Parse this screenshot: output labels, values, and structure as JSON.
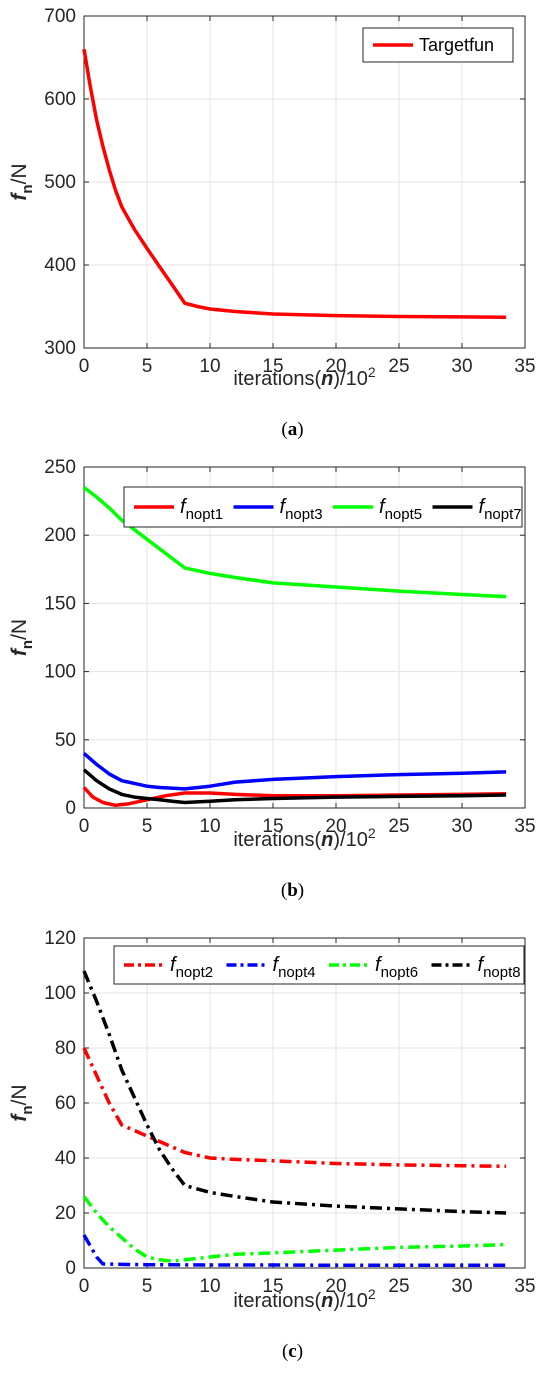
{
  "chart_data": [
    {
      "type": "line",
      "panel": "a",
      "caption": "(a)",
      "caption_letter": "a",
      "xlabel_prefix": "iterations(",
      "xlabel_var": "n",
      "xlabel_suffix": ")/10",
      "xlabel_exp": "2",
      "ylabel_var": "f",
      "ylabel_sub": "n",
      "ylabel_unit": "/N",
      "xlim": [
        0,
        35
      ],
      "ylim": [
        300,
        700
      ],
      "xticks": [
        "0",
        "5",
        "10",
        "15",
        "20",
        "25",
        "30",
        "35"
      ],
      "yticks": [
        "300",
        "400",
        "500",
        "600",
        "700"
      ],
      "grid": true,
      "legend": "top-right",
      "series": [
        {
          "name": "Targetfun",
          "color": "#ff0000",
          "dash": "solid",
          "x": [
            0,
            0.5,
            1,
            1.5,
            2,
            2.5,
            3,
            4,
            5,
            6,
            7,
            8,
            9,
            10,
            12,
            15,
            20,
            25,
            30,
            33.5
          ],
          "y": [
            660,
            615,
            575,
            543,
            515,
            490,
            470,
            443,
            420,
            398,
            376,
            354,
            350,
            347,
            344,
            341,
            339,
            338,
            337.5,
            337
          ]
        }
      ]
    },
    {
      "type": "line",
      "panel": "b",
      "caption": "(b)",
      "caption_letter": "b",
      "xlabel_prefix": "iterations(",
      "xlabel_var": "n",
      "xlabel_suffix": ")/10",
      "xlabel_exp": "2",
      "ylabel_var": "f",
      "ylabel_sub": "n",
      "ylabel_unit": "/N",
      "xlim": [
        0,
        35
      ],
      "ylim": [
        0,
        250
      ],
      "xticks": [
        "0",
        "5",
        "10",
        "15",
        "20",
        "25",
        "30",
        "35"
      ],
      "yticks": [
        "0",
        "50",
        "100",
        "150",
        "200",
        "250"
      ],
      "grid": true,
      "legend": "top",
      "series": [
        {
          "name_f": "f",
          "name_sub": "nopt1",
          "color": "#ff0000",
          "dash": "solid",
          "x": [
            0,
            0.7,
            1.5,
            2.5,
            3.5,
            5,
            6.5,
            8,
            10,
            12,
            15,
            20,
            25,
            30,
            33.5
          ],
          "y": [
            15,
            8,
            4,
            2,
            3,
            6,
            9,
            11,
            11,
            10,
            9,
            9,
            9.5,
            10,
            10.5
          ]
        },
        {
          "name_f": "f",
          "name_sub": "nopt3",
          "color": "#0000ff",
          "dash": "solid",
          "x": [
            0,
            1,
            2,
            3,
            4,
            5,
            6,
            8,
            10,
            12,
            15,
            20,
            25,
            30,
            33.5
          ],
          "y": [
            40,
            32,
            25,
            20,
            18,
            16,
            15,
            14,
            16,
            19,
            21,
            23,
            24.5,
            25.5,
            26.5
          ]
        },
        {
          "name_f": "f",
          "name_sub": "nopt5",
          "color": "#00ff00",
          "dash": "solid",
          "x": [
            0,
            1,
            2,
            3,
            4,
            5,
            6,
            7,
            8,
            10,
            12,
            15,
            20,
            25,
            30,
            33.5
          ],
          "y": [
            235,
            228,
            220,
            211,
            204,
            197,
            190,
            183,
            176,
            172,
            169,
            165,
            162,
            159,
            156.5,
            155
          ]
        },
        {
          "name_f": "f",
          "name_sub": "nopt7",
          "color": "#000000",
          "dash": "solid",
          "x": [
            0,
            1,
            2,
            3,
            4,
            5,
            6,
            7,
            8,
            10,
            12,
            15,
            20,
            25,
            30,
            33.5
          ],
          "y": [
            28,
            20,
            14,
            10,
            8,
            7,
            6,
            5,
            4,
            5,
            6,
            7,
            8,
            8.5,
            9,
            9.5
          ]
        }
      ]
    },
    {
      "type": "line",
      "panel": "c",
      "caption": "(c)",
      "caption_letter": "c",
      "xlabel_prefix": "iterations(",
      "xlabel_var": "n",
      "xlabel_suffix": ")/10",
      "xlabel_exp": "2",
      "ylabel_var": "f",
      "ylabel_sub": "n",
      "ylabel_unit": "/N",
      "xlim": [
        0,
        35
      ],
      "ylim": [
        0,
        120
      ],
      "xticks": [
        "0",
        "5",
        "10",
        "15",
        "20",
        "25",
        "30",
        "35"
      ],
      "yticks": [
        "0",
        "20",
        "40",
        "60",
        "80",
        "100",
        "120"
      ],
      "grid": true,
      "legend": "top",
      "series": [
        {
          "name_f": "f",
          "name_sub": "nopt2",
          "color": "#ff0000",
          "dash": "dashdot",
          "x": [
            0,
            1,
            2,
            3,
            4,
            5,
            6,
            7,
            8,
            10,
            12,
            15,
            20,
            25,
            30,
            33.5
          ],
          "y": [
            80,
            70,
            60,
            52,
            50,
            48,
            46,
            44,
            42,
            40,
            39.5,
            39,
            38,
            37.5,
            37.2,
            37
          ]
        },
        {
          "name_f": "f",
          "name_sub": "nopt4",
          "color": "#0000ff",
          "dash": "dashdot",
          "x": [
            0,
            0.5,
            1,
            1.5,
            3,
            5,
            10,
            15,
            20,
            25,
            30,
            33.5
          ],
          "y": [
            12,
            8,
            4,
            1.5,
            1.3,
            1.2,
            1.1,
            1.1,
            1,
            1,
            1,
            1
          ]
        },
        {
          "name_f": "f",
          "name_sub": "nopt6",
          "color": "#00ff00",
          "dash": "dashdot",
          "x": [
            0,
            1,
            2,
            3,
            4,
            5,
            6,
            7,
            8,
            10,
            12,
            15,
            20,
            25,
            30,
            33.5
          ],
          "y": [
            26,
            20,
            15,
            11,
            7,
            4,
            3,
            2.5,
            3,
            4,
            5,
            5.5,
            6.5,
            7.5,
            8,
            8.5
          ]
        },
        {
          "name_f": "f",
          "name_sub": "nopt8",
          "color": "#000000",
          "dash": "dashdot",
          "x": [
            0,
            1,
            2,
            3,
            4,
            5,
            6,
            7,
            8,
            10,
            12,
            15,
            20,
            25,
            30,
            33.5
          ],
          "y": [
            108,
            97,
            85,
            72,
            62,
            52,
            43,
            36,
            30,
            27.5,
            26,
            24,
            22.5,
            21.5,
            20.5,
            20
          ]
        }
      ]
    }
  ]
}
